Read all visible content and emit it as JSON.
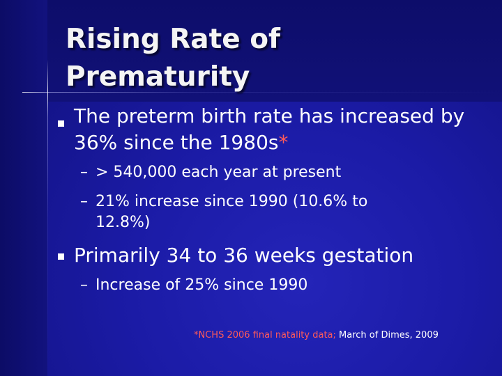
{
  "slide": {
    "title_line1": "Rising Rate of",
    "title_line2": "Prematurity",
    "bullets": [
      {
        "text": "The preterm birth rate has increased by 36% since the 1980s",
        "mark": "*",
        "subs": [
          {
            "text": "> 540,000 each year at present"
          },
          {
            "text": "21% increase since 1990 (10.6% to",
            "cont": "12.8%)"
          }
        ]
      },
      {
        "text": "Primarily 34 to 36 weeks gestation",
        "subs": [
          {
            "text": "Increase of 25% since 1990"
          }
        ]
      }
    ],
    "citation_red": "*NCHS 2006 final natality data;",
    "citation_white": " March of Dimes, 2009",
    "dash_glyph": "–"
  },
  "colors": {
    "background": "#1a1a9a",
    "accent_red": "#ff5a5a",
    "text": "#ffffff"
  }
}
